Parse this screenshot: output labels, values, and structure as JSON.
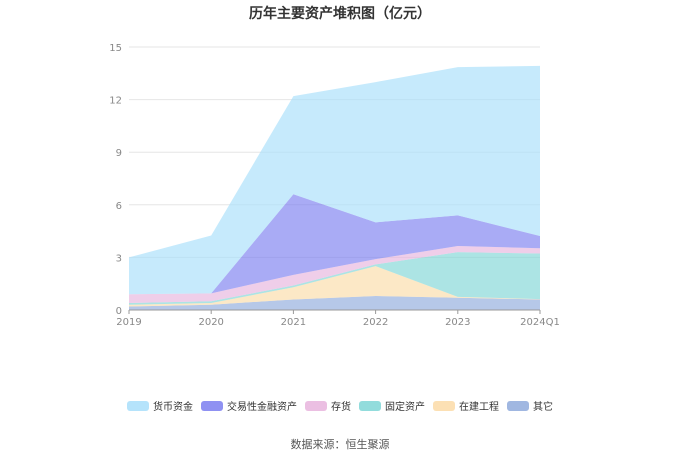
{
  "title": "历年主要资产堆积图（亿元）",
  "source": "数据来源：恒生聚源",
  "chart_data": {
    "type": "area",
    "stacked": true,
    "categories": [
      "2019",
      "2020",
      "2021",
      "2022",
      "2023",
      "2024Q1"
    ],
    "ylim": [
      0,
      15
    ],
    "yticks": [
      0,
      3,
      6,
      9,
      12,
      15
    ],
    "grid": true,
    "legend_position": "bottom",
    "series": [
      {
        "name": "其它",
        "color": "#8faadc",
        "values": [
          0.2,
          0.3,
          0.6,
          0.8,
          0.7,
          0.6
        ]
      },
      {
        "name": "在建工程",
        "color": "#fbdba7",
        "values": [
          0.1,
          0.1,
          0.7,
          1.7,
          0.05,
          0.02
        ]
      },
      {
        "name": "固定资产",
        "color": "#7fd6d6",
        "values": [
          0.1,
          0.1,
          0.1,
          0.1,
          2.55,
          2.6
        ]
      },
      {
        "name": "存货",
        "color": "#e7b4dd",
        "values": [
          0.5,
          0.45,
          0.6,
          0.3,
          0.35,
          0.3
        ]
      },
      {
        "name": "交易性金融资产",
        "color": "#7b7ef0",
        "values": [
          0.0,
          0.0,
          4.6,
          2.1,
          1.75,
          0.7
        ]
      },
      {
        "name": "货币资金",
        "color": "#a8defa",
        "values": [
          2.1,
          3.3,
          5.6,
          8.0,
          8.45,
          9.7
        ]
      }
    ],
    "legend_order": [
      "货币资金",
      "交易性金融资产",
      "存货",
      "固定资产",
      "在建工程",
      "其它"
    ]
  }
}
